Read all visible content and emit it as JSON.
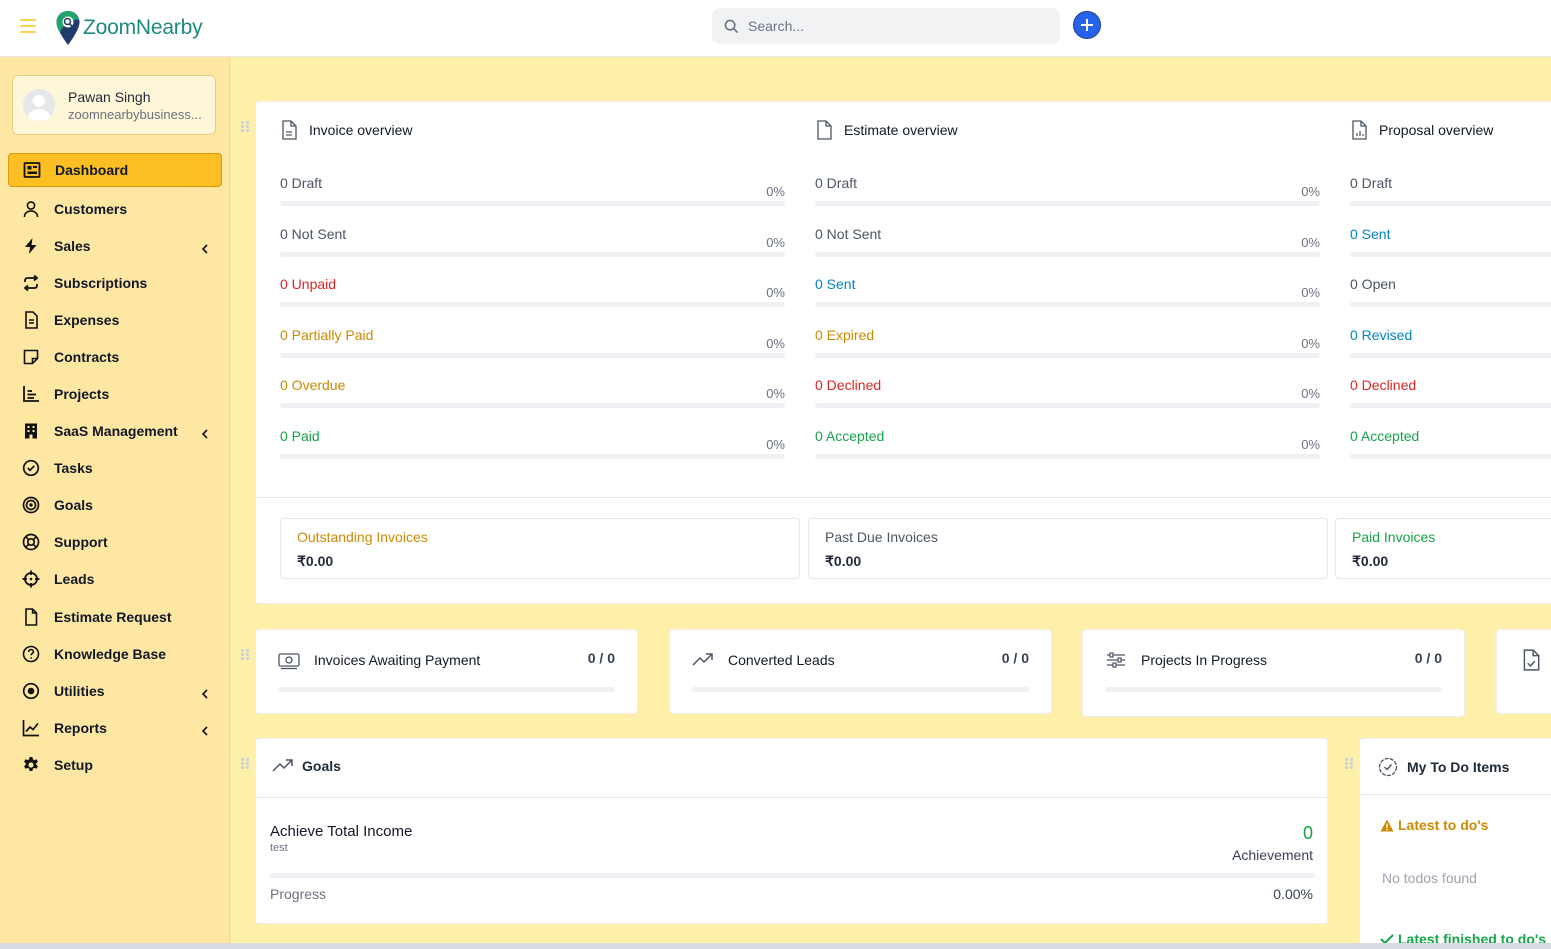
{
  "header": {
    "logo_text": "ZoomNearby",
    "search_placeholder": "Search..."
  },
  "profile": {
    "name": "Pawan Singh",
    "email": "zoomnearbybusiness..."
  },
  "sidebar": {
    "items": [
      {
        "label": "Dashboard",
        "icon": "dashboard-icon",
        "active": true,
        "chevron": false
      },
      {
        "label": "Customers",
        "icon": "user-icon",
        "chevron": false
      },
      {
        "label": "Sales",
        "icon": "bolt-icon",
        "chevron": true
      },
      {
        "label": "Subscriptions",
        "icon": "repeat-icon",
        "chevron": false
      },
      {
        "label": "Expenses",
        "icon": "receipt-icon",
        "chevron": false
      },
      {
        "label": "Contracts",
        "icon": "sticky-note-icon",
        "chevron": false
      },
      {
        "label": "Projects",
        "icon": "chart-bars-icon",
        "chevron": false
      },
      {
        "label": "SaaS Management",
        "icon": "building-icon",
        "chevron": true
      },
      {
        "label": "Tasks",
        "icon": "check-circle-icon",
        "chevron": false
      },
      {
        "label": "Goals",
        "icon": "target-icon",
        "chevron": false
      },
      {
        "label": "Support",
        "icon": "lifebuoy-icon",
        "chevron": false
      },
      {
        "label": "Leads",
        "icon": "crosshair-icon",
        "chevron": false
      },
      {
        "label": "Estimate Request",
        "icon": "file-icon",
        "chevron": false
      },
      {
        "label": "Knowledge Base",
        "icon": "question-circle-icon",
        "chevron": false
      },
      {
        "label": "Utilities",
        "icon": "dot-circle-icon",
        "chevron": true
      },
      {
        "label": "Reports",
        "icon": "line-chart-icon",
        "chevron": true
      },
      {
        "label": "Setup",
        "icon": "gear-icon",
        "chevron": false
      }
    ]
  },
  "overview": {
    "invoice": {
      "title": "Invoice overview",
      "rows": [
        {
          "label": "0 Draft",
          "pct": "0%",
          "color": "gray"
        },
        {
          "label": "0 Not Sent",
          "pct": "0%",
          "color": "gray"
        },
        {
          "label": "0 Unpaid",
          "pct": "0%",
          "color": "red"
        },
        {
          "label": "0 Partially Paid",
          "pct": "0%",
          "color": "orange"
        },
        {
          "label": "0 Overdue",
          "pct": "0%",
          "color": "orange"
        },
        {
          "label": "0 Paid",
          "pct": "0%",
          "color": "green"
        }
      ]
    },
    "estimate": {
      "title": "Estimate overview",
      "rows": [
        {
          "label": "0 Draft",
          "pct": "0%",
          "color": "gray"
        },
        {
          "label": "0 Not Sent",
          "pct": "0%",
          "color": "gray"
        },
        {
          "label": "0 Sent",
          "pct": "0%",
          "color": "blue"
        },
        {
          "label": "0 Expired",
          "pct": "0%",
          "color": "orange"
        },
        {
          "label": "0 Declined",
          "pct": "0%",
          "color": "red"
        },
        {
          "label": "0 Accepted",
          "pct": "0%",
          "color": "green"
        }
      ]
    },
    "proposal": {
      "title": "Proposal overview",
      "rows": [
        {
          "label": "0 Draft",
          "color": "gray"
        },
        {
          "label": "0 Sent",
          "color": "blue"
        },
        {
          "label": "0 Open",
          "color": "gray"
        },
        {
          "label": "0 Revised",
          "color": "blue"
        },
        {
          "label": "0 Declined",
          "color": "red"
        },
        {
          "label": "0 Accepted",
          "color": "green"
        }
      ]
    }
  },
  "summary": [
    {
      "label": "Outstanding Invoices",
      "value": "₹0.00",
      "color": "orange"
    },
    {
      "label": "Past Due Invoices",
      "value": "₹0.00",
      "color": "gray"
    },
    {
      "label": "Paid Invoices",
      "value": "₹0.00",
      "color": "green"
    }
  ],
  "stats": [
    {
      "title": "Invoices Awaiting Payment",
      "value": "0 / 0"
    },
    {
      "title": "Converted Leads",
      "value": "0 / 0"
    },
    {
      "title": "Projects In Progress",
      "value": "0 / 0"
    }
  ],
  "goals": {
    "title": "Goals",
    "name": "Achieve Total Income",
    "subtitle": "test",
    "achievement_value": "0",
    "achievement_label": "Achievement",
    "progress_label": "Progress",
    "progress_value": "0.00%"
  },
  "todo": {
    "title": "My To Do Items",
    "latest_label": "Latest to do's",
    "empty_text": "No todos found",
    "finished_label": "Latest finished to do's"
  },
  "colors": {
    "sidebar_bg": "#fde7a2",
    "main_bg": "#fef0a8",
    "active_bg": "#fbbf24",
    "brand": "#1e8a7d",
    "accent_blue": "#2563eb"
  }
}
